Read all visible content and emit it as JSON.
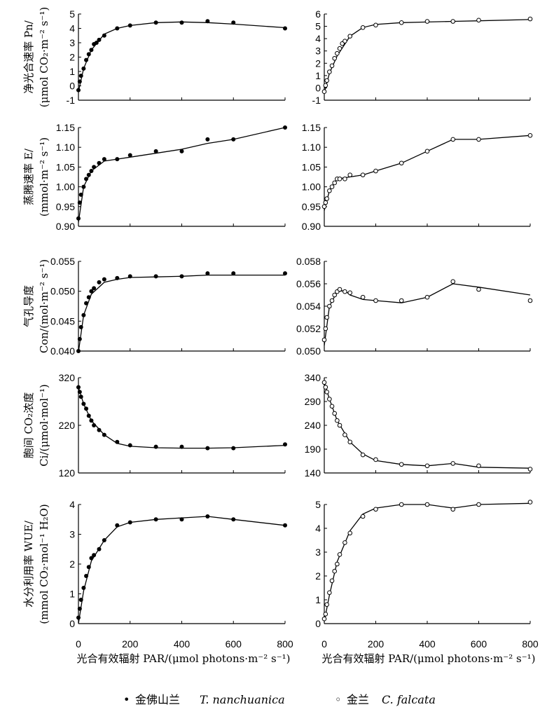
{
  "x_axis_label": "光合有效辐射 PAR/(μmol photons·m⁻² s⁻¹)",
  "legend": [
    {
      "symbol": "•",
      "name_cn": "金佛山兰",
      "name_latin": "T. nanchuanica",
      "marker": "filled",
      "color": "#000000"
    },
    {
      "symbol": "◦",
      "name_cn": "金兰",
      "name_latin": "C. falcata",
      "marker": "open",
      "color": "#000000"
    }
  ],
  "chart_data": [
    {
      "type": "scatter",
      "row": 1,
      "species": "T. nanchuanica",
      "marker": "filled",
      "ylabel_line1": "净光合速率 Pn/",
      "ylabel_line2": "(μmol CO₂·m⁻² s⁻¹)",
      "xlim": [
        0,
        800
      ],
      "xticks": [
        "0",
        "200",
        "400",
        "600",
        "800"
      ],
      "ylim": [
        -1,
        5
      ],
      "yticks": [
        "-1",
        "0",
        "1",
        "2",
        "3",
        "4",
        "5"
      ],
      "x": [
        0,
        5,
        10,
        20,
        30,
        40,
        50,
        60,
        70,
        80,
        100,
        150,
        200,
        300,
        400,
        500,
        600,
        800
      ],
      "y": [
        -0.3,
        0.3,
        0.7,
        1.2,
        1.8,
        2.2,
        2.5,
        2.9,
        3.0,
        3.2,
        3.5,
        4.0,
        4.2,
        4.4,
        4.4,
        4.5,
        4.4,
        4.0
      ],
      "curve_x": [
        0,
        20,
        50,
        100,
        150,
        200,
        300,
        400,
        500,
        600,
        800
      ],
      "curve_y": [
        -0.4,
        1.2,
        2.5,
        3.6,
        4.0,
        4.2,
        4.4,
        4.45,
        4.4,
        4.3,
        4.05
      ]
    },
    {
      "type": "scatter",
      "row": 1,
      "species": "C. falcata",
      "marker": "open",
      "ylabel_line1": "",
      "ylabel_line2": "",
      "xlim": [
        0,
        800
      ],
      "xticks": [
        "0",
        "200",
        "400",
        "600",
        "800"
      ],
      "ylim": [
        -1,
        6
      ],
      "yticks": [
        "-1",
        "0",
        "1",
        "2",
        "3",
        "4",
        "5",
        "6"
      ],
      "x": [
        0,
        5,
        10,
        20,
        30,
        40,
        50,
        60,
        70,
        80,
        100,
        150,
        200,
        300,
        400,
        500,
        600,
        800
      ],
      "y": [
        -0.3,
        0.2,
        0.6,
        1.3,
        1.8,
        2.4,
        2.8,
        3.2,
        3.6,
        3.8,
        4.2,
        4.9,
        5.1,
        5.3,
        5.4,
        5.4,
        5.5,
        5.6
      ],
      "curve_x": [
        0,
        20,
        50,
        100,
        150,
        200,
        300,
        400,
        500,
        600,
        800
      ],
      "curve_y": [
        -0.4,
        1.2,
        2.6,
        4.2,
        4.9,
        5.15,
        5.3,
        5.35,
        5.4,
        5.45,
        5.55
      ]
    },
    {
      "type": "scatter",
      "row": 2,
      "species": "T. nanchuanica",
      "marker": "filled",
      "ylabel_line1": "蒸腾速率 E/",
      "ylabel_line2": "(mmol·m⁻² s⁻¹)",
      "xlim": [
        0,
        800
      ],
      "xticks": [
        "0",
        "200",
        "400",
        "600",
        "800"
      ],
      "ylim": [
        0.9,
        1.15
      ],
      "yticks": [
        "0.90",
        "0.95",
        "1.00",
        "1.05",
        "1.10",
        "1.15"
      ],
      "x": [
        0,
        5,
        10,
        20,
        30,
        40,
        50,
        60,
        80,
        100,
        150,
        200,
        300,
        400,
        500,
        600,
        800
      ],
      "y": [
        0.92,
        0.96,
        0.98,
        1.0,
        1.02,
        1.03,
        1.04,
        1.05,
        1.06,
        1.07,
        1.07,
        1.08,
        1.09,
        1.09,
        1.12,
        1.12,
        1.15
      ],
      "curve_x": [
        0,
        20,
        50,
        100,
        150,
        200,
        300,
        400,
        500,
        600,
        800
      ],
      "curve_y": [
        0.91,
        1.0,
        1.04,
        1.065,
        1.07,
        1.075,
        1.085,
        1.095,
        1.11,
        1.12,
        1.15
      ]
    },
    {
      "type": "scatter",
      "row": 2,
      "species": "C. falcata",
      "marker": "open",
      "ylabel_line1": "",
      "ylabel_line2": "",
      "xlim": [
        0,
        800
      ],
      "xticks": [
        "0",
        "200",
        "400",
        "600",
        "800"
      ],
      "ylim": [
        0.9,
        1.15
      ],
      "yticks": [
        "0.90",
        "0.95",
        "1.00",
        "1.05",
        "1.10",
        "1.15"
      ],
      "x": [
        0,
        5,
        10,
        20,
        30,
        40,
        50,
        60,
        80,
        100,
        150,
        200,
        300,
        400,
        500,
        600,
        800
      ],
      "y": [
        0.95,
        0.96,
        0.97,
        0.99,
        1.0,
        1.01,
        1.02,
        1.02,
        1.02,
        1.03,
        1.03,
        1.04,
        1.06,
        1.09,
        1.12,
        1.12,
        1.13
      ],
      "curve_x": [
        0,
        20,
        50,
        100,
        150,
        200,
        300,
        400,
        500,
        600,
        800
      ],
      "curve_y": [
        0.94,
        0.99,
        1.02,
        1.025,
        1.03,
        1.04,
        1.06,
        1.09,
        1.12,
        1.12,
        1.13
      ]
    },
    {
      "type": "scatter",
      "row": 3,
      "species": "T. nanchuanica",
      "marker": "filled",
      "ylabel_line1": "气孔导度",
      "ylabel_line2": "Con/(mol·m⁻² s⁻¹)",
      "xlim": [
        0,
        800
      ],
      "xticks": [
        "0",
        "200",
        "400",
        "600",
        "800"
      ],
      "ylim": [
        0.04,
        0.055
      ],
      "yticks": [
        "0.040",
        "0.045",
        "0.050",
        "0.055"
      ],
      "x": [
        0,
        5,
        10,
        20,
        30,
        40,
        50,
        60,
        80,
        100,
        150,
        200,
        300,
        400,
        500,
        600,
        800
      ],
      "y": [
        0.04,
        0.042,
        0.044,
        0.046,
        0.048,
        0.049,
        0.05,
        0.0505,
        0.0515,
        0.052,
        0.0522,
        0.0525,
        0.0525,
        0.0525,
        0.053,
        0.053,
        0.053
      ],
      "curve_x": [
        0,
        20,
        50,
        100,
        150,
        200,
        300,
        400,
        500,
        600,
        800
      ],
      "curve_y": [
        0.0398,
        0.046,
        0.0495,
        0.0515,
        0.052,
        0.0523,
        0.0524,
        0.0525,
        0.0527,
        0.0527,
        0.0527
      ]
    },
    {
      "type": "scatter",
      "row": 3,
      "species": "C. falcata",
      "marker": "open",
      "ylabel_line1": "",
      "ylabel_line2": "",
      "xlim": [
        0,
        800
      ],
      "xticks": [
        "0",
        "200",
        "400",
        "600",
        "800"
      ],
      "ylim": [
        0.05,
        0.058
      ],
      "yticks": [
        "0.050",
        "0.052",
        "0.054",
        "0.056",
        "0.058"
      ],
      "x": [
        0,
        5,
        10,
        20,
        30,
        40,
        50,
        60,
        80,
        100,
        150,
        200,
        300,
        400,
        500,
        600,
        800
      ],
      "y": [
        0.051,
        0.052,
        0.053,
        0.054,
        0.0545,
        0.055,
        0.0553,
        0.0555,
        0.0553,
        0.0552,
        0.0548,
        0.0545,
        0.0545,
        0.0548,
        0.0562,
        0.0555,
        0.0545
      ],
      "curve_x": [
        0,
        20,
        50,
        80,
        100,
        150,
        200,
        300,
        400,
        500,
        600,
        800
      ],
      "curve_y": [
        0.0505,
        0.054,
        0.0553,
        0.0554,
        0.055,
        0.0546,
        0.0545,
        0.0543,
        0.0548,
        0.056,
        0.0557,
        0.055
      ]
    },
    {
      "type": "scatter",
      "row": 4,
      "species": "T. nanchuanica",
      "marker": "filled",
      "ylabel_line1": "胞间 CO₂浓度",
      "ylabel_line2": "Ci/(μmol·mol⁻¹)",
      "xlim": [
        0,
        800
      ],
      "xticks": [
        "0",
        "200",
        "400",
        "600",
        "800"
      ],
      "ylim": [
        120,
        320
      ],
      "yticks": [
        "120",
        "220",
        "320"
      ],
      "x": [
        0,
        5,
        10,
        20,
        30,
        40,
        50,
        60,
        80,
        100,
        150,
        200,
        300,
        400,
        500,
        600,
        800
      ],
      "y": [
        300,
        290,
        280,
        265,
        255,
        240,
        230,
        220,
        210,
        200,
        185,
        178,
        175,
        175,
        172,
        172,
        180
      ],
      "curve_x": [
        0,
        20,
        50,
        100,
        150,
        200,
        300,
        400,
        500,
        600,
        800
      ],
      "curve_y": [
        300,
        265,
        230,
        200,
        182,
        176,
        173,
        172,
        172,
        173,
        178
      ]
    },
    {
      "type": "scatter",
      "row": 4,
      "species": "C. falcata",
      "marker": "open",
      "ylabel_line1": "",
      "ylabel_line2": "",
      "xlim": [
        0,
        800
      ],
      "xticks": [
        "0",
        "200",
        "400",
        "600",
        "800"
      ],
      "ylim": [
        140,
        340
      ],
      "yticks": [
        "140",
        "190",
        "240",
        "290",
        "340"
      ],
      "x": [
        0,
        5,
        10,
        20,
        30,
        40,
        50,
        60,
        80,
        100,
        150,
        200,
        300,
        400,
        500,
        600,
        800
      ],
      "y": [
        330,
        320,
        310,
        295,
        280,
        265,
        250,
        240,
        220,
        205,
        178,
        168,
        158,
        155,
        160,
        155,
        148
      ],
      "curve_x": [
        0,
        20,
        50,
        100,
        150,
        200,
        300,
        400,
        500,
        600,
        800
      ],
      "curve_y": [
        330,
        295,
        250,
        205,
        180,
        166,
        158,
        155,
        160,
        152,
        150
      ]
    },
    {
      "type": "scatter",
      "row": 5,
      "species": "T. nanchuanica",
      "marker": "filled",
      "ylabel_line1": "水分利用率 WUE/",
      "ylabel_line2": "(mmol CO₂·mol⁻¹ H₂O)",
      "xlim": [
        0,
        800
      ],
      "xticks": [
        "0",
        "200",
        "400",
        "600",
        "800"
      ],
      "ylim": [
        0,
        4
      ],
      "yticks": [
        "0",
        "1",
        "2",
        "3",
        "4"
      ],
      "x": [
        0,
        5,
        10,
        20,
        30,
        40,
        50,
        60,
        80,
        100,
        150,
        200,
        300,
        400,
        500,
        600,
        800
      ],
      "y": [
        0.2,
        0.5,
        0.8,
        1.2,
        1.6,
        1.9,
        2.2,
        2.3,
        2.5,
        2.8,
        3.3,
        3.4,
        3.5,
        3.5,
        3.6,
        3.5,
        3.3
      ],
      "curve_x": [
        0,
        20,
        50,
        100,
        150,
        200,
        300,
        400,
        500,
        600,
        800
      ],
      "curve_y": [
        0.0,
        1.1,
        2.1,
        2.8,
        3.25,
        3.4,
        3.5,
        3.55,
        3.6,
        3.5,
        3.3
      ]
    },
    {
      "type": "scatter",
      "row": 5,
      "species": "C. falcata",
      "marker": "open",
      "ylabel_line1": "",
      "ylabel_line2": "",
      "xlim": [
        0,
        800
      ],
      "xticks": [
        "0",
        "200",
        "400",
        "600",
        "800"
      ],
      "ylim": [
        0,
        5
      ],
      "yticks": [
        "0",
        "1",
        "2",
        "3",
        "4",
        "5"
      ],
      "x": [
        0,
        5,
        10,
        20,
        30,
        40,
        50,
        60,
        80,
        100,
        150,
        200,
        300,
        400,
        500,
        600,
        800
      ],
      "y": [
        0.2,
        0.4,
        0.8,
        1.3,
        1.8,
        2.2,
        2.5,
        2.9,
        3.4,
        3.8,
        4.5,
        4.8,
        5.0,
        5.0,
        4.8,
        5.0,
        5.1
      ],
      "curve_x": [
        0,
        20,
        50,
        100,
        150,
        200,
        300,
        400,
        500,
        600,
        800
      ],
      "curve_y": [
        0.1,
        1.2,
        2.6,
        3.9,
        4.6,
        4.85,
        5.0,
        5.0,
        4.85,
        5.0,
        5.05
      ]
    }
  ]
}
